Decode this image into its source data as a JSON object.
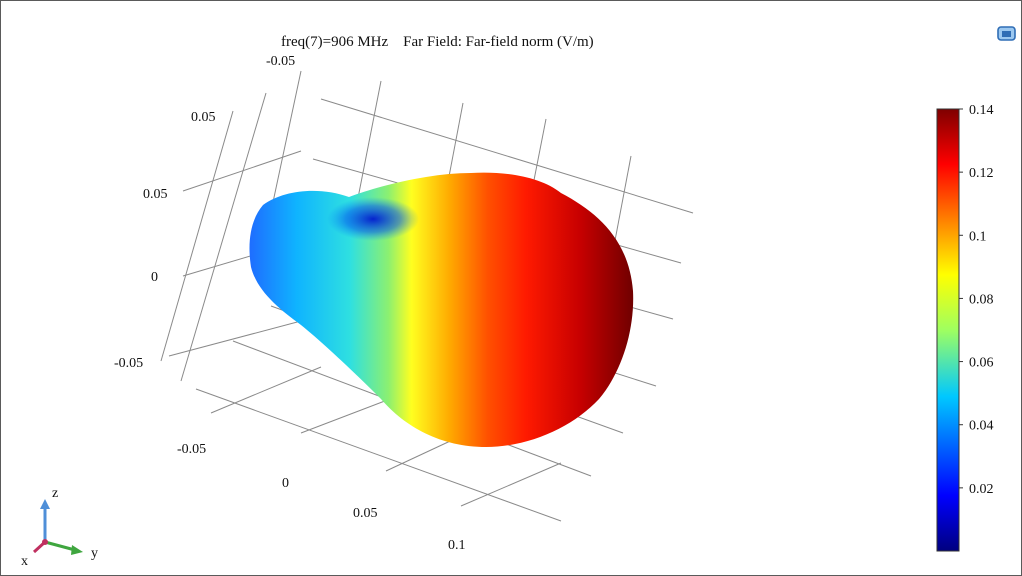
{
  "title": "freq(7)=906 MHz    Far Field: Far-field norm (V/m)",
  "toolbar": {
    "icon": "view-screen-icon"
  },
  "chart_data": {
    "type": "3d-surface",
    "title": "freq(7)=906 MHz    Far Field: Far-field norm (V/m)",
    "surface": "far-field radiation pattern",
    "axis_ticks": {
      "x": [
        "-0.05",
        "0",
        "0.05",
        "0.1"
      ],
      "y": [
        "-0.05"
      ],
      "z": [
        "0.05",
        "0.05",
        "0",
        "-0.05"
      ]
    },
    "colorbar": {
      "min": 0.0,
      "max": 0.14,
      "ticks": [
        "0.14",
        "0.12",
        "0.1",
        "0.08",
        "0.06",
        "0.04",
        "0.02"
      ],
      "colormap": [
        "#00007f",
        "#0000ff",
        "#00c8ff",
        "#9fff60",
        "#ffff00",
        "#ff8000",
        "#ff0000",
        "#7f0000"
      ]
    },
    "triad": {
      "labels": [
        "z",
        "x",
        "y"
      ]
    }
  }
}
